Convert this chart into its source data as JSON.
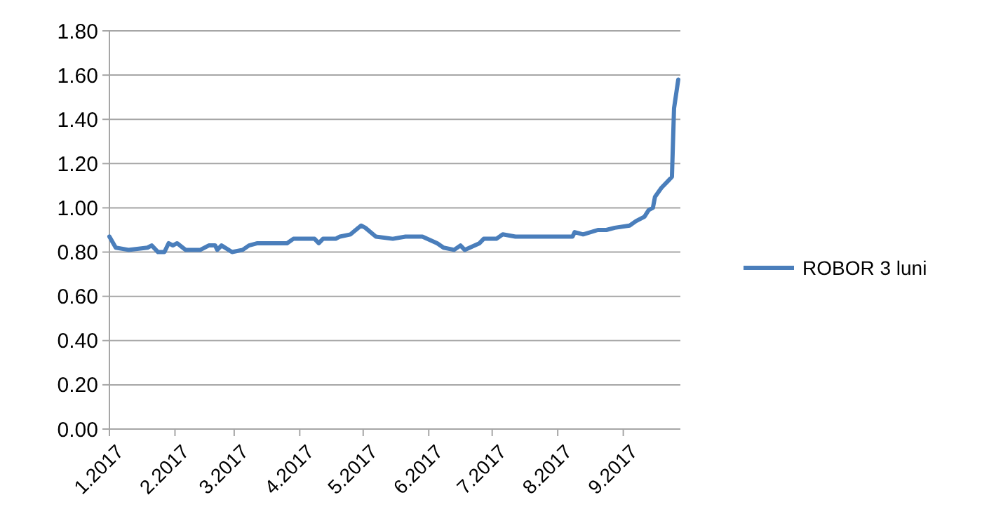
{
  "chart_data": {
    "type": "line",
    "x": [
      "2017-01-01",
      "2017-01-04",
      "2017-01-10",
      "2017-01-19",
      "2017-01-21",
      "2017-01-24",
      "2017-01-27",
      "2017-01-29",
      "2017-01-31",
      "2017-02-02",
      "2017-02-06",
      "2017-02-13",
      "2017-02-17",
      "2017-02-20",
      "2017-02-21",
      "2017-02-23",
      "2017-02-28",
      "2017-03-05",
      "2017-03-08",
      "2017-03-12",
      "2017-03-26",
      "2017-03-29",
      "2017-04-08",
      "2017-04-10",
      "2017-04-12",
      "2017-04-18",
      "2017-04-20",
      "2017-04-25",
      "2017-04-30",
      "2017-05-02",
      "2017-05-07",
      "2017-05-15",
      "2017-05-21",
      "2017-05-29",
      "2017-06-05",
      "2017-06-08",
      "2017-06-13",
      "2017-06-16",
      "2017-06-18",
      "2017-06-25",
      "2017-06-27",
      "2017-07-03",
      "2017-07-06",
      "2017-07-12",
      "2017-08-08",
      "2017-08-09",
      "2017-08-13",
      "2017-08-20",
      "2017-08-24",
      "2017-08-28",
      "2017-09-04",
      "2017-09-07",
      "2017-09-11",
      "2017-09-13",
      "2017-09-15",
      "2017-09-16",
      "2017-09-19",
      "2017-09-22",
      "2017-09-24",
      "2017-09-25",
      "2017-09-27"
    ],
    "series": [
      {
        "name": "ROBOR 3 luni",
        "color": "#4a7ebb",
        "values": [
          0.87,
          0.82,
          0.81,
          0.82,
          0.83,
          0.8,
          0.8,
          0.84,
          0.83,
          0.84,
          0.81,
          0.81,
          0.83,
          0.83,
          0.81,
          0.83,
          0.8,
          0.81,
          0.83,
          0.84,
          0.84,
          0.86,
          0.86,
          0.84,
          0.86,
          0.86,
          0.87,
          0.88,
          0.92,
          0.91,
          0.87,
          0.86,
          0.87,
          0.87,
          0.84,
          0.82,
          0.81,
          0.83,
          0.81,
          0.84,
          0.86,
          0.86,
          0.88,
          0.87,
          0.87,
          0.89,
          0.88,
          0.9,
          0.9,
          0.91,
          0.92,
          0.94,
          0.96,
          0.99,
          1.0,
          1.05,
          1.09,
          1.12,
          1.14,
          1.45,
          1.58
        ]
      }
    ],
    "xlim": [
      "2017-01-01",
      "2017-09-28"
    ],
    "xticks": [
      {
        "value": "2017-01-01",
        "label": "1.2017"
      },
      {
        "value": "2017-02-01",
        "label": "2.2017"
      },
      {
        "value": "2017-03-01",
        "label": "3.2017"
      },
      {
        "value": "2017-04-01",
        "label": "4.2017"
      },
      {
        "value": "2017-05-01",
        "label": "5.2017"
      },
      {
        "value": "2017-06-01",
        "label": "6.2017"
      },
      {
        "value": "2017-07-01",
        "label": "7.2017"
      },
      {
        "value": "2017-08-01",
        "label": "8.2017"
      },
      {
        "value": "2017-09-01",
        "label": "9.2017"
      }
    ],
    "ylim": [
      0,
      1.8
    ],
    "yticks": [
      {
        "value": 0,
        "label": "0.00"
      },
      {
        "value": 0.2,
        "label": "0.20"
      },
      {
        "value": 0.4,
        "label": "0.40"
      },
      {
        "value": 0.6,
        "label": "0.60"
      },
      {
        "value": 0.8,
        "label": "0.80"
      },
      {
        "value": 1,
        "label": "1.00"
      },
      {
        "value": 1.2,
        "label": "1.20"
      },
      {
        "value": 1.4,
        "label": "1.40"
      },
      {
        "value": 1.6,
        "label": "1.60"
      },
      {
        "value": 1.8,
        "label": "1.80"
      }
    ],
    "grid": "y",
    "legend": "right",
    "marker": "none",
    "line_style": "solid"
  }
}
